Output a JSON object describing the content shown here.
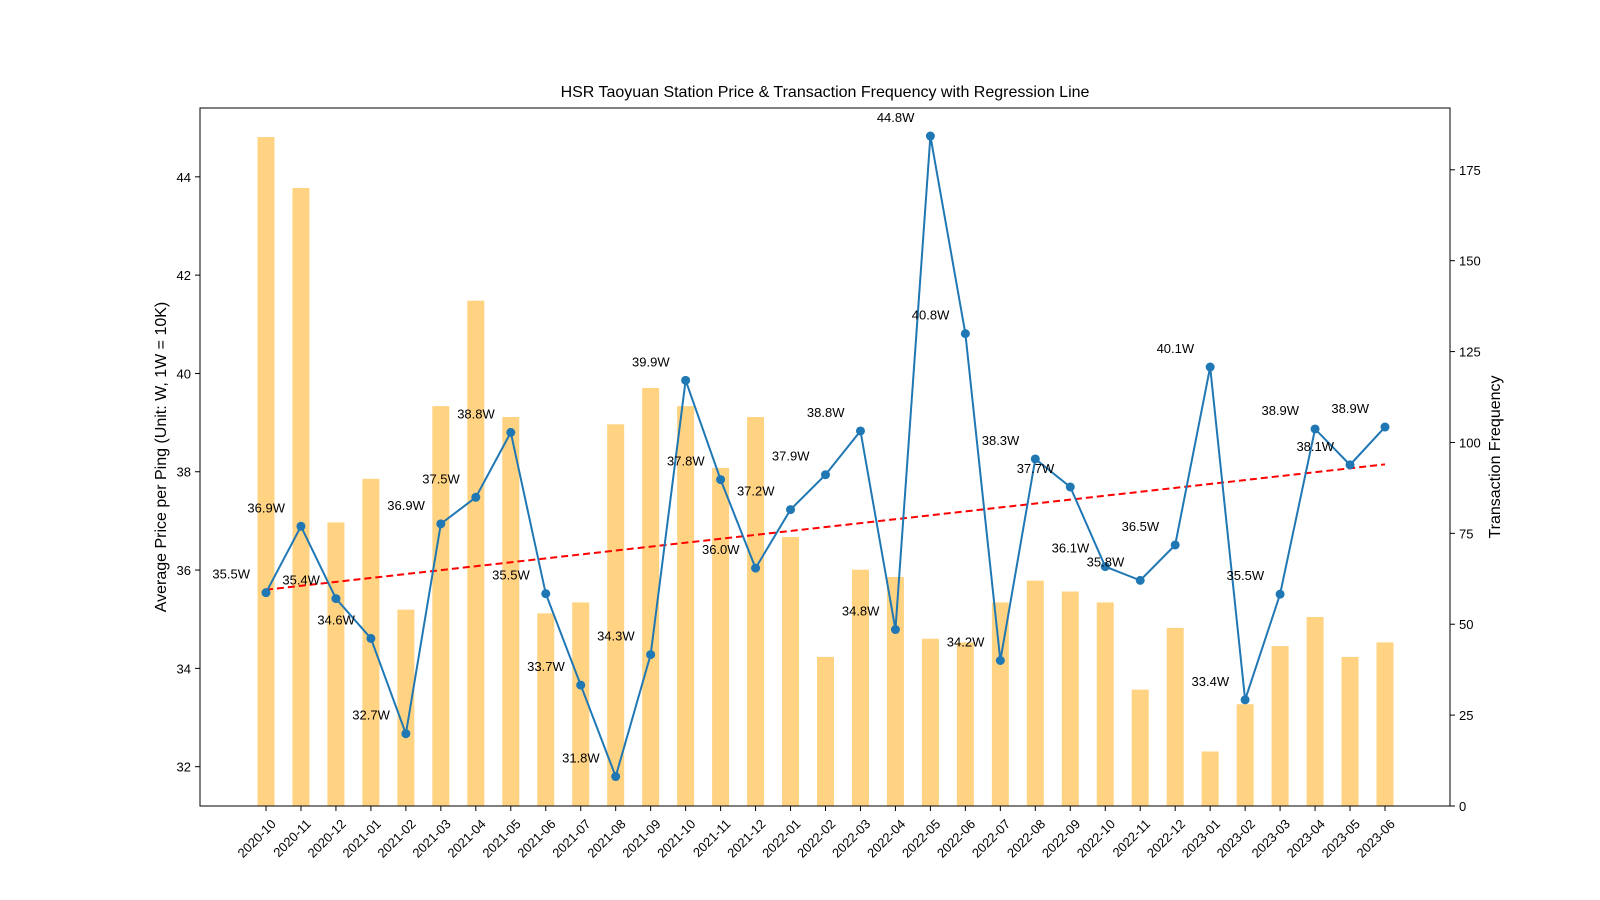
{
  "chart_data": {
    "type": "bar+line",
    "title": "HSR Taoyuan Station Price & Transaction Frequency with Regression Line",
    "ylabel_left": "Average Price per Ping (Unit: W, 1W = 10K)",
    "ylabel_right": "Transaction Frequency",
    "grid": false,
    "ylim_left": [
      31.2,
      45.4
    ],
    "ylim_right": [
      0,
      192
    ],
    "yticks_left": [
      32,
      34,
      36,
      38,
      40,
      42,
      44
    ],
    "yticks_right": [
      0,
      25,
      50,
      75,
      100,
      125,
      150,
      175
    ],
    "categories": [
      "2020-10",
      "2020-11",
      "2020-12",
      "2021-01",
      "2021-02",
      "2021-03",
      "2021-04",
      "2021-05",
      "2021-06",
      "2021-07",
      "2021-08",
      "2021-09",
      "2021-10",
      "2021-11",
      "2021-12",
      "2022-01",
      "2022-02",
      "2022-03",
      "2022-04",
      "2022-05",
      "2022-06",
      "2022-07",
      "2022-08",
      "2022-09",
      "2022-10",
      "2022-11",
      "2022-12",
      "2023-01",
      "2023-02",
      "2023-03",
      "2023-04",
      "2023-05",
      "2023-06"
    ],
    "series": [
      {
        "name": "Average Price",
        "kind": "line",
        "axis": "left",
        "color": "#1f77b4",
        "values": [
          35.54,
          36.89,
          35.42,
          34.61,
          32.67,
          36.94,
          37.48,
          38.8,
          35.52,
          33.66,
          31.8,
          34.28,
          39.86,
          37.84,
          36.04,
          37.23,
          37.94,
          38.83,
          34.79,
          44.83,
          40.81,
          34.16,
          38.26,
          37.69,
          36.07,
          35.79,
          36.51,
          40.13,
          33.36,
          35.51,
          38.87,
          38.14,
          38.91
        ],
        "labels": [
          "35.5W",
          "36.9W",
          "35.4W",
          "34.6W",
          "32.7W",
          "36.9W",
          "37.5W",
          "38.8W",
          "35.5W",
          "33.7W",
          "31.8W",
          "34.3W",
          "39.9W",
          "37.8W",
          "36.0W",
          "37.2W",
          "37.9W",
          "38.8W",
          "34.8W",
          "44.8W",
          "40.8W",
          "34.2W",
          "38.3W",
          "37.7W",
          "36.1W",
          "35.8W",
          "36.5W",
          "40.1W",
          "33.4W",
          "35.5W",
          "38.9W",
          "38.1W",
          "38.9W"
        ]
      },
      {
        "name": "Transaction Frequency",
        "kind": "bar",
        "axis": "right",
        "color": "#ffc04d",
        "values": [
          184,
          170,
          78,
          90,
          54,
          110,
          139,
          107,
          53,
          56,
          105,
          115,
          110,
          93,
          107,
          74,
          41,
          65,
          63,
          46,
          45,
          56,
          62,
          59,
          56,
          32,
          49,
          15,
          28,
          44,
          52,
          41,
          45
        ]
      },
      {
        "name": "Regression Line",
        "kind": "line",
        "axis": "left",
        "color": "#ff0000",
        "style": "dashed",
        "start": 35.6,
        "end": 38.15
      }
    ]
  }
}
